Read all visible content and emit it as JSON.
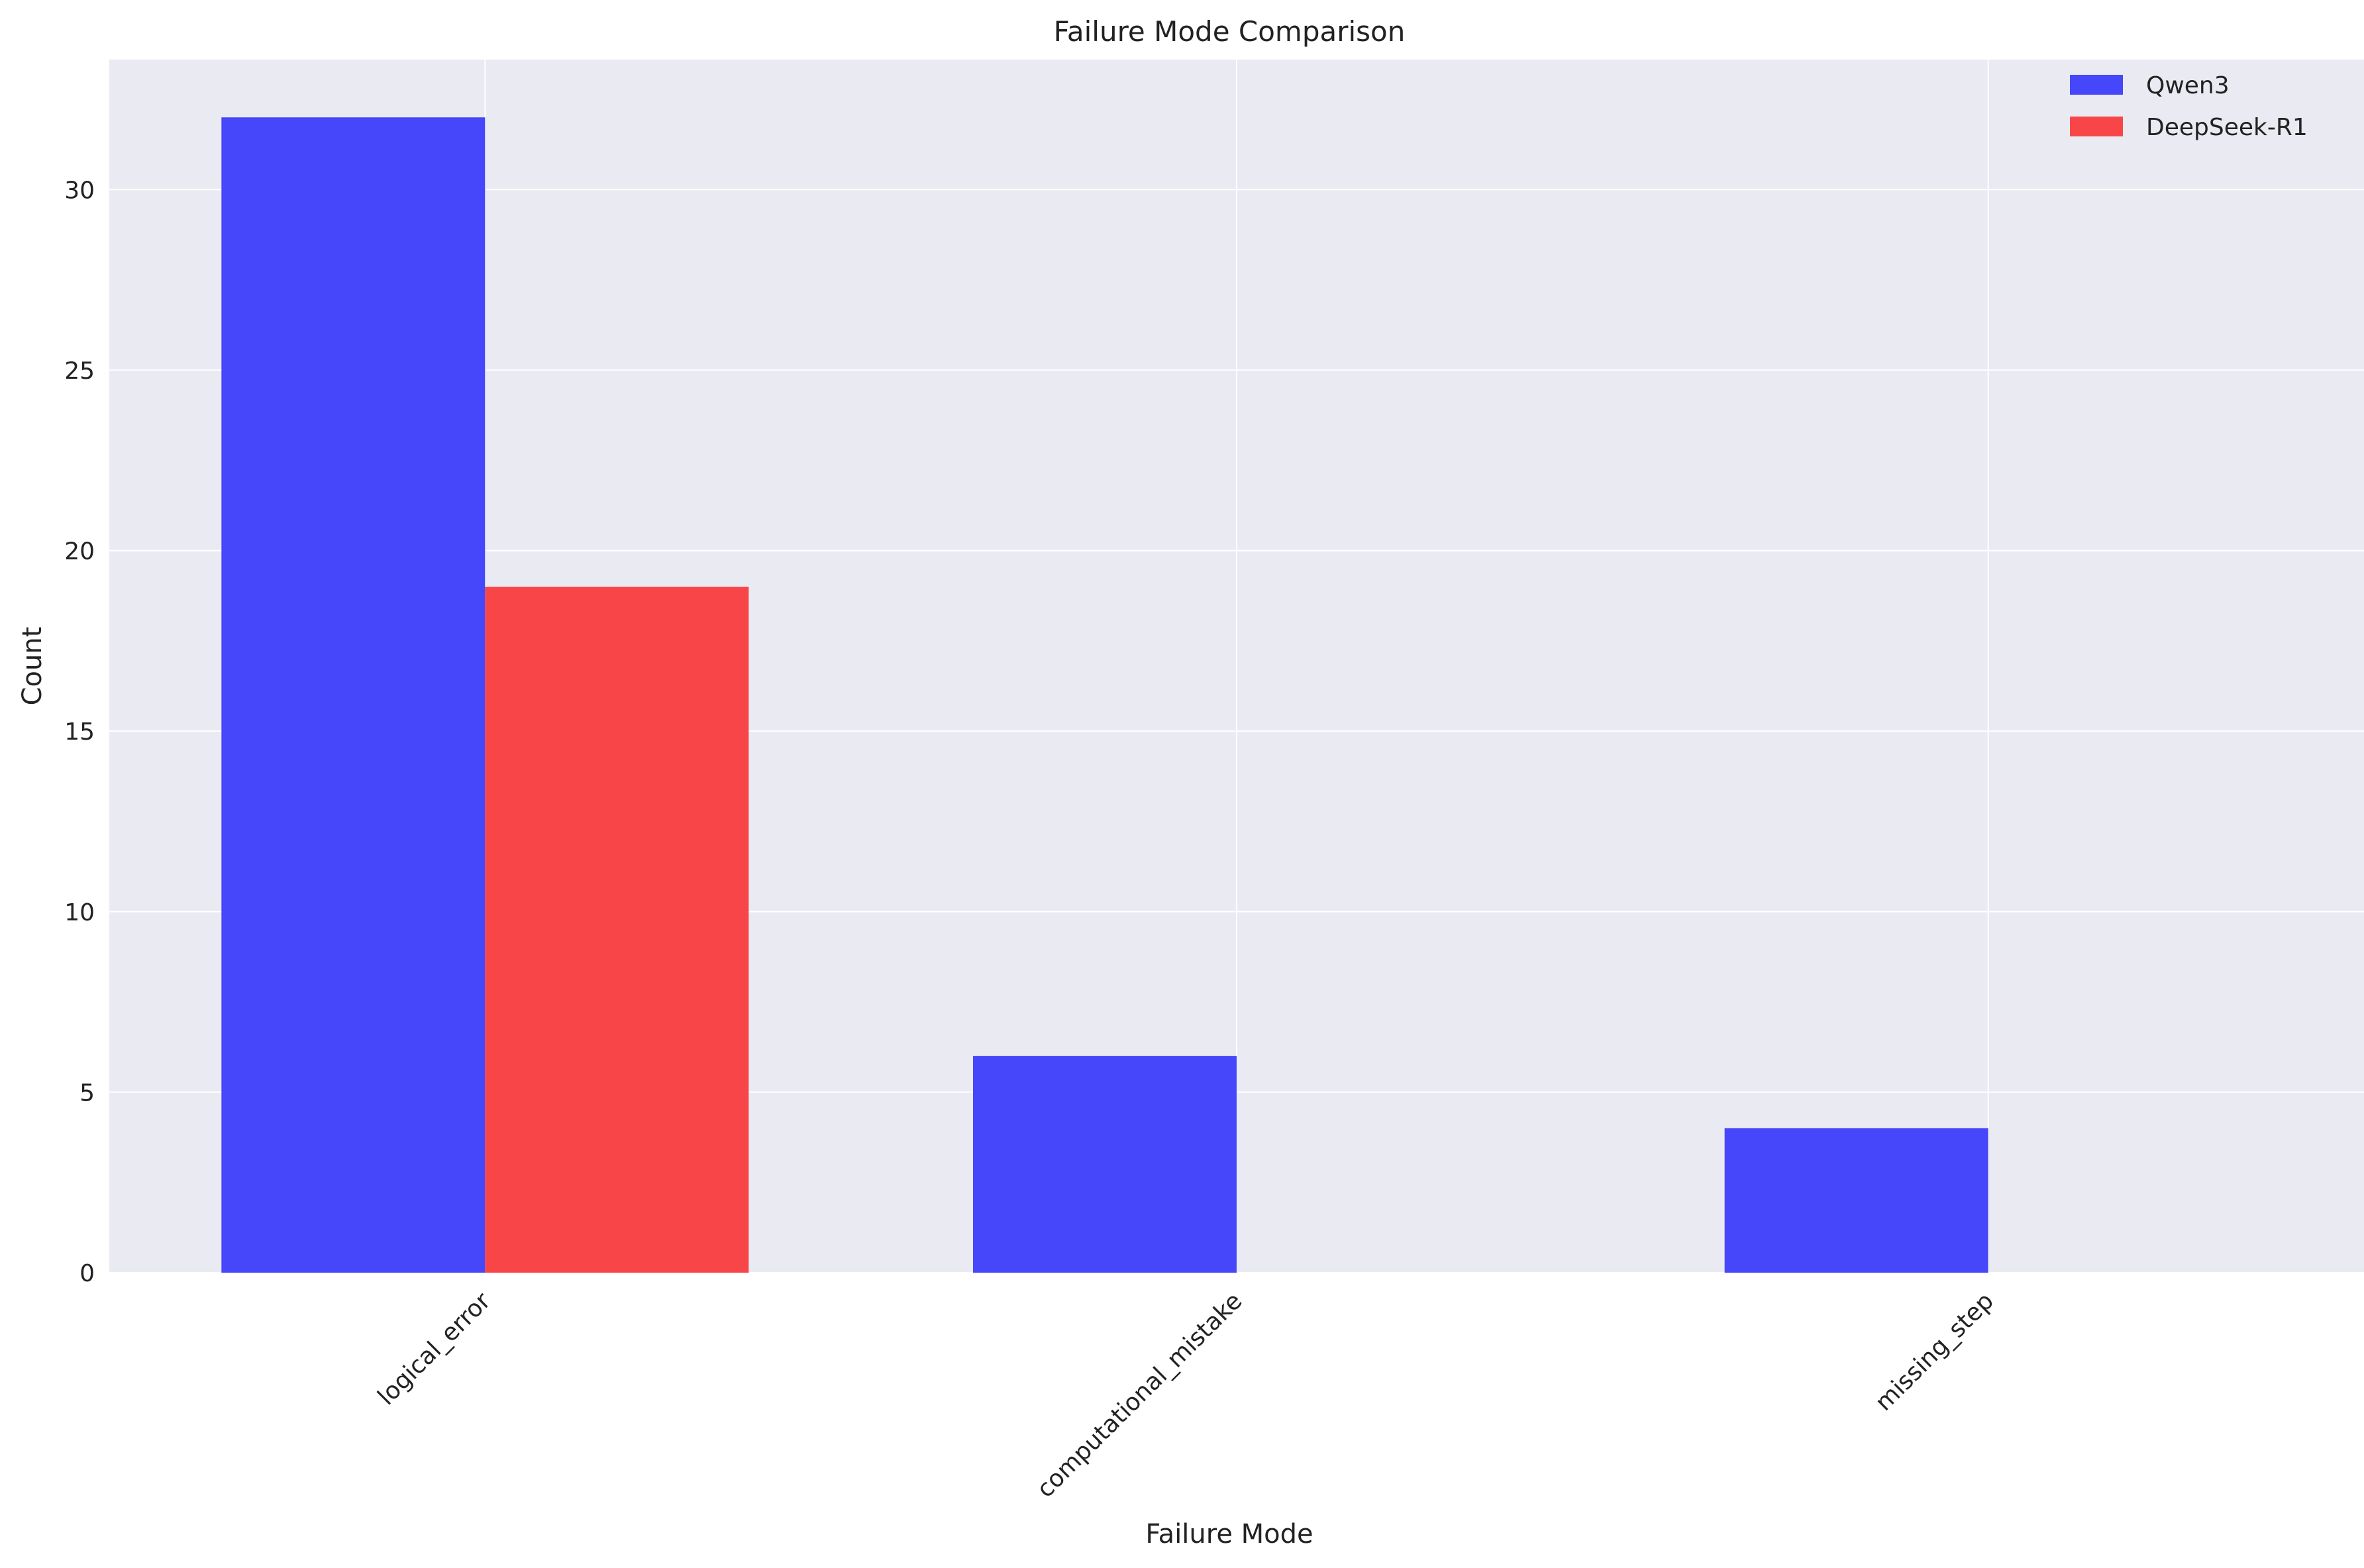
{
  "chart_data": {
    "type": "bar",
    "title": "Failure Mode Comparison",
    "xlabel": "Failure Mode",
    "ylabel": "Count",
    "categories": [
      "logical_error",
      "computational_mistake",
      "missing_step"
    ],
    "series": [
      {
        "name": "Qwen3",
        "color": "#4646fa",
        "values": [
          32,
          6,
          4
        ]
      },
      {
        "name": "DeepSeek-R1",
        "color": "#f84648",
        "values": [
          19,
          0,
          0
        ]
      }
    ],
    "ylim": [
      0,
      33.6
    ],
    "yticks": [
      0,
      5,
      10,
      15,
      20,
      25,
      30
    ],
    "grid": true,
    "legend_position": "top-right",
    "background": "#eaeaf2"
  }
}
